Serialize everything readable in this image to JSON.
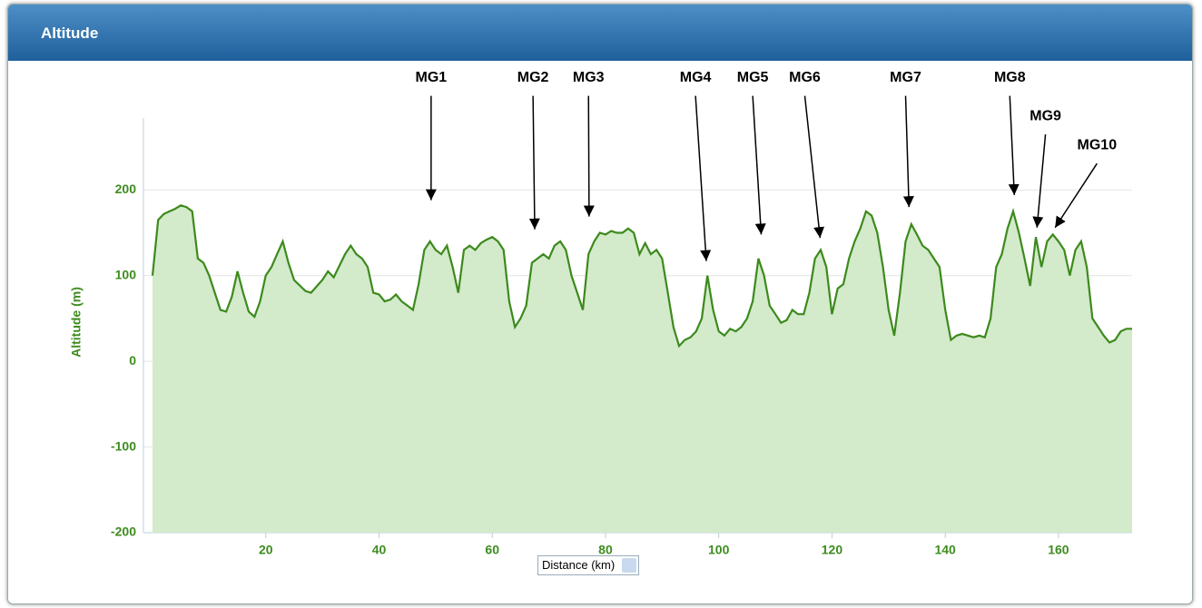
{
  "panel": {
    "title": "Altitude"
  },
  "chart_data": {
    "type": "area",
    "y_axis_label": "Altitude (m)",
    "x_axis_label": "Distance (km)",
    "color": "#3c8a1c",
    "fill": "#d3eacb",
    "grid": true,
    "xlim": [
      0,
      173
    ],
    "ylim": [
      -200,
      284
    ],
    "xticks": [
      20,
      40,
      60,
      80,
      100,
      120,
      140,
      160
    ],
    "yticks": [
      -200,
      -100,
      0,
      100,
      200
    ],
    "x": [
      0,
      1,
      2,
      3,
      4,
      5,
      6,
      7,
      8,
      9,
      10,
      11,
      12,
      13,
      14,
      15,
      16,
      17,
      18,
      19,
      20,
      21,
      22,
      23,
      24,
      25,
      27,
      28,
      30,
      31,
      32,
      34,
      35,
      36,
      37,
      38,
      39,
      40,
      41,
      42,
      43,
      44,
      45,
      46,
      47,
      48,
      49,
      50,
      51,
      52,
      53,
      54,
      55,
      56,
      57,
      58,
      59,
      60,
      61,
      62,
      63,
      64,
      65,
      66,
      67,
      68,
      69,
      70,
      71,
      72,
      73,
      74,
      75,
      76,
      77,
      78,
      79,
      80,
      81,
      82,
      83,
      84,
      85,
      86,
      87,
      88,
      89,
      90,
      91,
      92,
      93,
      94,
      95,
      96,
      97,
      98,
      99,
      100,
      101,
      102,
      103,
      104,
      105,
      106,
      107,
      108,
      109,
      110,
      111,
      112,
      113,
      114,
      115,
      116,
      117,
      118,
      119,
      120,
      121,
      122,
      123,
      124,
      125,
      126,
      127,
      128,
      129,
      130,
      131,
      132,
      133,
      134,
      135,
      136,
      137,
      138,
      139,
      140,
      141,
      142,
      143,
      144,
      145,
      146,
      147,
      148,
      149,
      150,
      151,
      152,
      153,
      154,
      155,
      156,
      157,
      158,
      159,
      160,
      161,
      162,
      163,
      164,
      165,
      166,
      167,
      168,
      169,
      170,
      171,
      172,
      173
    ],
    "values": [
      100,
      165,
      172,
      175,
      178,
      182,
      180,
      175,
      120,
      115,
      100,
      80,
      60,
      58,
      75,
      105,
      80,
      58,
      52,
      70,
      100,
      110,
      125,
      140,
      115,
      95,
      82,
      80,
      95,
      105,
      98,
      125,
      135,
      125,
      120,
      110,
      80,
      78,
      70,
      72,
      78,
      70,
      65,
      60,
      90,
      130,
      140,
      130,
      125,
      135,
      110,
      80,
      130,
      135,
      130,
      138,
      142,
      145,
      140,
      130,
      70,
      40,
      50,
      65,
      115,
      120,
      125,
      120,
      135,
      140,
      130,
      100,
      80,
      60,
      125,
      140,
      150,
      148,
      152,
      150,
      150,
      155,
      150,
      125,
      138,
      125,
      130,
      120,
      80,
      40,
      18,
      25,
      28,
      35,
      50,
      100,
      60,
      35,
      30,
      38,
      35,
      40,
      50,
      70,
      120,
      100,
      65,
      55,
      45,
      48,
      60,
      55,
      55,
      80,
      120,
      130,
      110,
      55,
      85,
      90,
      120,
      140,
      155,
      175,
      170,
      150,
      110,
      60,
      30,
      80,
      140,
      160,
      148,
      135,
      130,
      120,
      110,
      60,
      25,
      30,
      32,
      30,
      28,
      30,
      28,
      50,
      110,
      125,
      155,
      175,
      150,
      120,
      88,
      145,
      110,
      140,
      148,
      140,
      130,
      100,
      130,
      140,
      110,
      50,
      40,
      30,
      22,
      25,
      35,
      38,
      38
    ],
    "annotations": [
      {
        "text": "MG1",
        "x": 49.2,
        "y": 188,
        "label_x": 49.2,
        "label_y": 331
      },
      {
        "text": "MG2",
        "x": 67.5,
        "y": 154,
        "label_x": 67.2,
        "label_y": 331
      },
      {
        "text": "MG3",
        "x": 77.1,
        "y": 169,
        "label_x": 77.0,
        "label_y": 331
      },
      {
        "text": "MG4",
        "x": 97.8,
        "y": 117,
        "label_x": 95.9,
        "label_y": 331
      },
      {
        "text": "MG5",
        "x": 107.5,
        "y": 148,
        "label_x": 106.0,
        "label_y": 331
      },
      {
        "text": "MG6",
        "x": 117.9,
        "y": 144,
        "label_x": 115.2,
        "label_y": 331
      },
      {
        "text": "MG7",
        "x": 133.6,
        "y": 180,
        "label_x": 133.0,
        "label_y": 331
      },
      {
        "text": "MG8",
        "x": 152.2,
        "y": 194,
        "label_x": 151.4,
        "label_y": 331
      },
      {
        "text": "MG9",
        "x": 156.2,
        "y": 156,
        "label_x": 157.7,
        "label_y": 286
      },
      {
        "text": "MG10",
        "x": 159.4,
        "y": 156,
        "label_x": 166.8,
        "label_y": 252
      }
    ]
  }
}
